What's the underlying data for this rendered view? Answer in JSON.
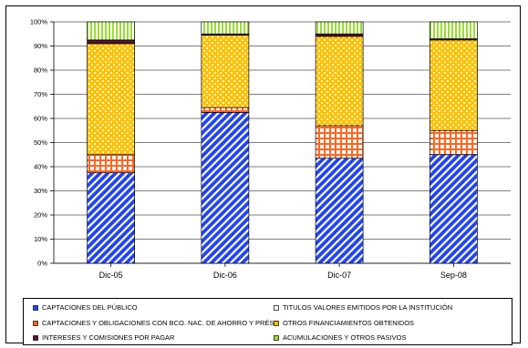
{
  "chart_data": {
    "type": "bar",
    "stacked": true,
    "normalized": true,
    "categories": [
      "Dic-05",
      "Dic-06",
      "Dic-07",
      "Sep-08"
    ],
    "y_ticks": [
      "0%",
      "10%",
      "20%",
      "30%",
      "40%",
      "50%",
      "60%",
      "70%",
      "80%",
      "90%",
      "100%"
    ],
    "ylim": [
      0,
      100
    ],
    "grid": "horizontal",
    "legend_position": "bottom",
    "series": [
      {
        "name": "CAPTACIONES DEL PÚBLICO",
        "values": [
          37.5,
          62.5,
          43.5,
          45.0
        ],
        "color": "#2244ee",
        "pattern": "diagonal-stripes"
      },
      {
        "name": "TITULOS VALORES EMITIDOS POR LA INSTITUCIÓN",
        "values": [
          0.0,
          0.0,
          0.0,
          0.0
        ],
        "color": "#ffffff",
        "pattern": "none"
      },
      {
        "name": "CAPTACIONES Y OBLIGACIONES CON BCO. NAC. DE AHORRO Y PRÉST.",
        "values": [
          7.5,
          2.0,
          13.5,
          10.0
        ],
        "color": "#ff6622",
        "pattern": "grid"
      },
      {
        "name": "OTROS FINANCIAMIENTOS OBTENIDOS",
        "values": [
          46.0,
          30.0,
          37.0,
          37.5
        ],
        "color": "#ffc000",
        "pattern": "checker"
      },
      {
        "name": "INTERESES Y COMISIONES POR PAGAR",
        "values": [
          1.5,
          0.5,
          1.0,
          0.5
        ],
        "color": "#551133",
        "pattern": "solid"
      },
      {
        "name": "ACUMULACIONES Y OTROS PASIVOS",
        "values": [
          7.5,
          5.0,
          5.0,
          7.0
        ],
        "color": "#99dd33",
        "pattern": "vertical-stripes"
      }
    ]
  },
  "legend_items": [
    {
      "label": "CAPTACIONES DEL PÚBLICO"
    },
    {
      "label": "TITULOS VALORES EMITIDOS POR LA INSTITUCIÓN"
    },
    {
      "label": "CAPTACIONES Y OBLIGACIONES CON BCO. NAC. DE AHORRO Y PRÉST."
    },
    {
      "label": "OTROS FINANCIAMIENTOS OBTENIDOS"
    },
    {
      "label": "INTERESES Y COMISIONES POR PAGAR"
    },
    {
      "label": "ACUMULACIONES Y OTROS PASIVOS"
    }
  ]
}
